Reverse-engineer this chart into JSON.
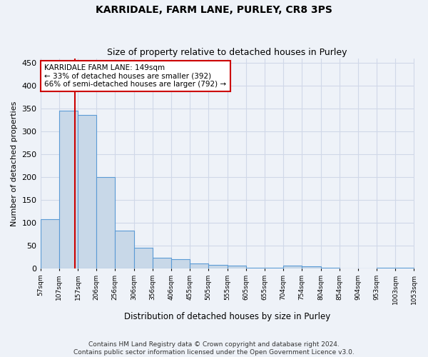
{
  "title": "KARRIDALE, FARM LANE, PURLEY, CR8 3PS",
  "subtitle": "Size of property relative to detached houses in Purley",
  "xlabel": "Distribution of detached houses by size in Purley",
  "ylabel": "Number of detached properties",
  "footer1": "Contains HM Land Registry data © Crown copyright and database right 2024.",
  "footer2": "Contains public sector information licensed under the Open Government Licence v3.0.",
  "annotation_title": "KARRIDALE FARM LANE: 149sqm",
  "annotation_line1": "← 33% of detached houses are smaller (392)",
  "annotation_line2": "66% of semi-detached houses are larger (792) →",
  "property_size_sqm": 149,
  "bar_edges": [
    57,
    107,
    157,
    206,
    256,
    306,
    356,
    406,
    455,
    505,
    555,
    605,
    655,
    704,
    754,
    804,
    854,
    904,
    953,
    1003,
    1053
  ],
  "bar_heights": [
    108,
    346,
    337,
    200,
    83,
    46,
    23,
    20,
    11,
    8,
    6,
    2,
    1,
    7,
    5,
    1,
    0,
    0,
    2,
    2
  ],
  "bar_color": "#c8d8e8",
  "bar_edge_color": "#5b9bd5",
  "grid_color": "#d0d8e8",
  "background_color": "#eef2f8",
  "annotation_box_color": "#ffffff",
  "annotation_box_edge_color": "#cc0000",
  "marker_line_color": "#cc0000",
  "ylim": [
    0,
    460
  ],
  "yticks": [
    0,
    50,
    100,
    150,
    200,
    250,
    300,
    350,
    400,
    450
  ]
}
